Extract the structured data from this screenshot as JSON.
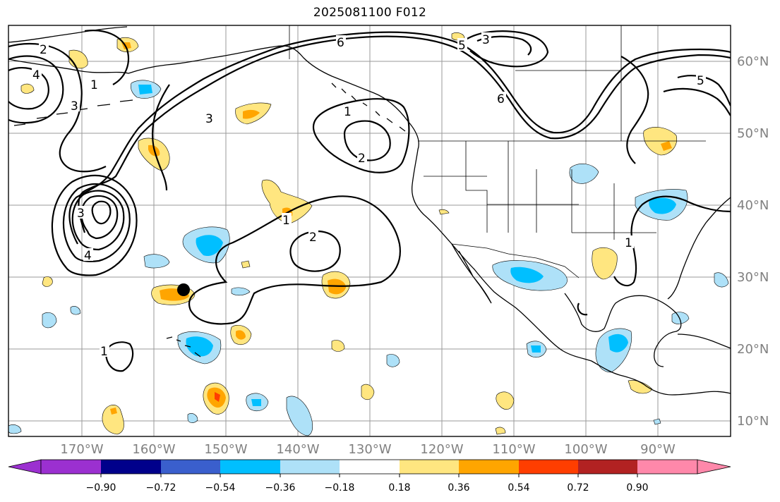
{
  "title": "2025081100 F012",
  "map": {
    "lon_labels": [
      "170°W",
      "160°W",
      "150°W",
      "140°W",
      "130°W",
      "120°W",
      "110°W",
      "100°W",
      "90°W"
    ],
    "lat_labels": [
      "60°N",
      "50°N",
      "40°N",
      "30°N",
      "20°N",
      "10°N"
    ],
    "contour_labels": [
      "2",
      "4",
      "6",
      "1",
      "3",
      "5"
    ],
    "marker": "filled-black-circle"
  },
  "colorbar": {
    "ticks": [
      "−0.90",
      "−0.72",
      "−0.54",
      "−0.36",
      "−0.18",
      "0.18",
      "0.36",
      "0.54",
      "0.72",
      "0.90"
    ],
    "colors": [
      "#9b30d0",
      "#00008b",
      "#3a5fcd",
      "#00bfff",
      "#aee1f8",
      "#ffffff",
      "#ffe680",
      "#ffa500",
      "#ff3e00",
      "#b22222",
      "#ff88aa"
    ],
    "extend": "both"
  }
}
